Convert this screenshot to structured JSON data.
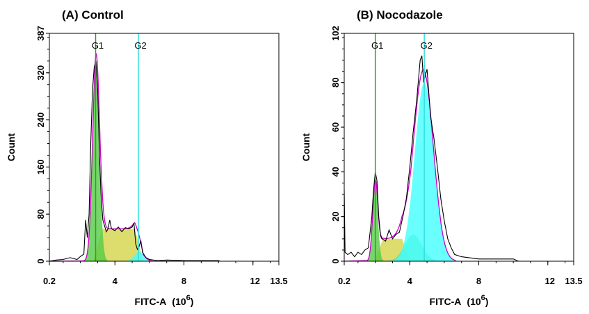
{
  "chart_data": [
    {
      "type": "area",
      "title": "(A) Control",
      "xlabel": "FITC-A",
      "xlabel_unit": "(10",
      "xlabel_exp": "6",
      "xlabel_close": ")",
      "ylabel": "Count",
      "xlim": [
        0.2,
        13.5
      ],
      "ylim": [
        0,
        387
      ],
      "x_ticks": [
        0.2,
        4,
        8,
        12,
        13.5
      ],
      "y_ticks": [
        0,
        80,
        160,
        240,
        320,
        387
      ],
      "gates": [
        {
          "label": "G1",
          "x": 2.88,
          "color": "#2ca02c"
        },
        {
          "label": "G2",
          "x": 5.36,
          "color": "#33dddd"
        }
      ],
      "components": [
        {
          "phase": "S",
          "shape": "plateau",
          "start": 3.0,
          "end": 5.4,
          "height": 55,
          "color": "#d4d44a"
        },
        {
          "phase": "G1",
          "shape": "gaussian",
          "mean": 2.9,
          "sd": 0.2,
          "peak": 335,
          "color": "#55cc44"
        },
        {
          "phase": "G2",
          "shape": "gaussian",
          "mean": 5.4,
          "sd": 0.28,
          "peak": 16,
          "color": "#44ffff"
        }
      ],
      "fit_color": "#cc00cc",
      "observed_color": "#000000",
      "observed": [
        [
          0.2,
          0
        ],
        [
          0.6,
          2
        ],
        [
          1.0,
          3
        ],
        [
          1.4,
          6
        ],
        [
          1.8,
          3
        ],
        [
          2.0,
          8
        ],
        [
          2.2,
          12
        ],
        [
          2.3,
          70
        ],
        [
          2.4,
          40
        ],
        [
          2.5,
          80
        ],
        [
          2.6,
          200
        ],
        [
          2.7,
          290
        ],
        [
          2.8,
          330
        ],
        [
          2.9,
          340
        ],
        [
          3.0,
          290
        ],
        [
          3.1,
          180
        ],
        [
          3.2,
          110
        ],
        [
          3.3,
          70
        ],
        [
          3.4,
          60
        ],
        [
          3.5,
          50
        ],
        [
          3.6,
          55
        ],
        [
          3.7,
          70
        ],
        [
          3.8,
          55
        ],
        [
          4.0,
          52
        ],
        [
          4.2,
          58
        ],
        [
          4.4,
          50
        ],
        [
          4.6,
          57
        ],
        [
          4.8,
          55
        ],
        [
          5.0,
          58
        ],
        [
          5.1,
          65
        ],
        [
          5.2,
          30
        ],
        [
          5.3,
          20
        ],
        [
          5.4,
          25
        ],
        [
          5.5,
          35
        ],
        [
          5.6,
          15
        ],
        [
          5.8,
          6
        ],
        [
          6.0,
          3
        ],
        [
          6.5,
          1
        ],
        [
          7.0,
          2
        ],
        [
          8.0,
          1
        ],
        [
          9.0,
          1
        ],
        [
          10.0,
          1
        ],
        [
          10.1,
          0
        ]
      ]
    },
    {
      "type": "area",
      "title": "(B) Nocodazole",
      "xlabel": "FITC-A",
      "xlabel_unit": "(10",
      "xlabel_exp": "6",
      "xlabel_close": ")",
      "ylabel": "Count",
      "xlim": [
        0.2,
        13.5
      ],
      "ylim": [
        0,
        102
      ],
      "x_ticks": [
        0.2,
        4,
        8,
        12,
        13.5
      ],
      "y_ticks": [
        0,
        20,
        40,
        60,
        80,
        102
      ],
      "gates": [
        {
          "label": "G1",
          "x": 2.0,
          "color": "#2ca02c"
        },
        {
          "label": "G2",
          "x": 4.84,
          "color": "#33dddd"
        }
      ],
      "components": [
        {
          "phase": "S",
          "shape": "plateau",
          "start": 2.2,
          "end": 3.8,
          "height": 10,
          "color": "#d4d44a"
        },
        {
          "phase": "S2",
          "shape": "gaussian",
          "mean": 4.2,
          "sd": 0.5,
          "peak": 12,
          "color": "#66dd99"
        },
        {
          "phase": "G1",
          "shape": "gaussian",
          "mean": 2.0,
          "sd": 0.15,
          "peak": 35,
          "color": "#55cc44"
        },
        {
          "phase": "G2",
          "shape": "gaussian",
          "mean": 4.84,
          "sd": 0.55,
          "peak": 80,
          "color": "#44ffff"
        }
      ],
      "fit_color": "#cc00cc",
      "observed_color": "#000000",
      "observed": [
        [
          0.2,
          32
        ],
        [
          0.25,
          4
        ],
        [
          0.4,
          3
        ],
        [
          0.6,
          4
        ],
        [
          0.8,
          2
        ],
        [
          1.0,
          4
        ],
        [
          1.2,
          3
        ],
        [
          1.4,
          5
        ],
        [
          1.6,
          6
        ],
        [
          1.8,
          20
        ],
        [
          1.9,
          32
        ],
        [
          2.0,
          40
        ],
        [
          2.1,
          36
        ],
        [
          2.2,
          20
        ],
        [
          2.3,
          12
        ],
        [
          2.4,
          10
        ],
        [
          2.6,
          9
        ],
        [
          2.8,
          14
        ],
        [
          3.0,
          10
        ],
        [
          3.2,
          12
        ],
        [
          3.4,
          13
        ],
        [
          3.6,
          20
        ],
        [
          3.8,
          28
        ],
        [
          4.0,
          42
        ],
        [
          4.2,
          58
        ],
        [
          4.4,
          72
        ],
        [
          4.6,
          90
        ],
        [
          4.7,
          92
        ],
        [
          4.8,
          80
        ],
        [
          5.0,
          86
        ],
        [
          5.2,
          65
        ],
        [
          5.4,
          55
        ],
        [
          5.6,
          42
        ],
        [
          5.8,
          28
        ],
        [
          6.0,
          18
        ],
        [
          6.2,
          10
        ],
        [
          6.4,
          6
        ],
        [
          6.6,
          3
        ],
        [
          7.0,
          2
        ],
        [
          8.0,
          1
        ],
        [
          9.0,
          1
        ],
        [
          10.0,
          1
        ],
        [
          10.3,
          0
        ]
      ]
    }
  ]
}
